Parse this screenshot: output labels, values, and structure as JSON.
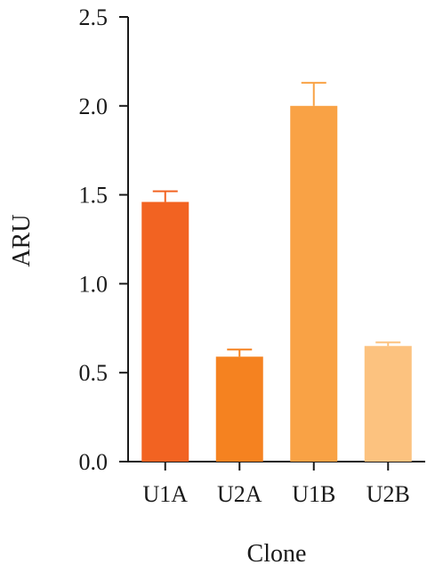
{
  "chart_data": {
    "type": "bar",
    "title": "",
    "xlabel": "Clone",
    "ylabel": "ARU",
    "categories": [
      "U1A",
      "U2A",
      "U1B",
      "U2B"
    ],
    "values": [
      1.46,
      0.59,
      2.0,
      0.65
    ],
    "errors": [
      0.06,
      0.04,
      0.13,
      0.02
    ],
    "colors": [
      "#f26322",
      "#f58220",
      "#f9a245",
      "#fcc27f"
    ],
    "error_bar_colors": [
      "#f26322",
      "#f58220",
      "#f9a245",
      "#fcc27f"
    ],
    "ylim": [
      0,
      2.5
    ],
    "yticks": [
      "0.0",
      "0.5",
      "1.0",
      "1.5",
      "2.0",
      "2.5"
    ],
    "grid": false,
    "legend": "none"
  }
}
